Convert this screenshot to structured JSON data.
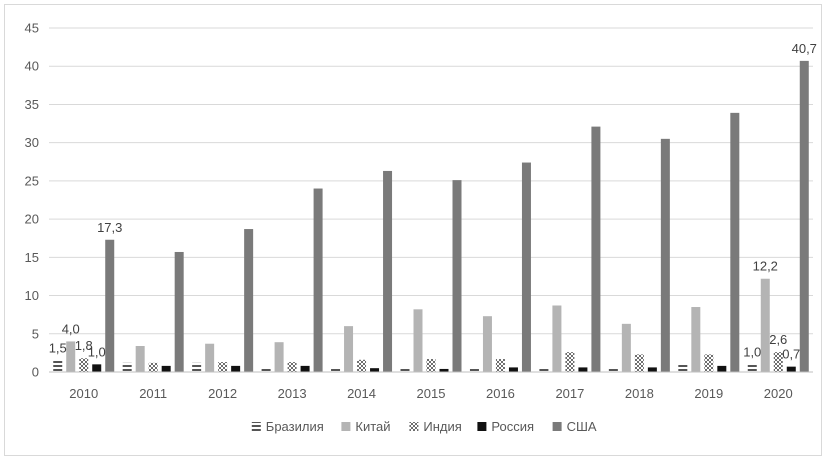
{
  "chart_data": {
    "type": "bar",
    "categories": [
      "2010",
      "2011",
      "2012",
      "2013",
      "2014",
      "2015",
      "2016",
      "2017",
      "2018",
      "2019",
      "2020"
    ],
    "ylim": [
      0,
      45
    ],
    "yticks": [
      "0",
      "5",
      "10",
      "15",
      "20",
      "25",
      "30",
      "35",
      "40",
      "45"
    ],
    "grid": "horizontal",
    "legend_position": "bottom",
    "series": [
      {
        "name": "Бразилия",
        "color": "#555555",
        "pattern": "dash",
        "values": [
          1.5,
          1.2,
          1.2,
          0.6,
          0.6,
          0.5,
          0.5,
          0.5,
          0.5,
          1.1,
          1.0
        ]
      },
      {
        "name": "Китай",
        "color": "#b4b4b4",
        "pattern": "solid",
        "values": [
          4.0,
          3.4,
          3.7,
          3.9,
          6.0,
          8.2,
          7.3,
          8.7,
          6.3,
          8.5,
          12.2
        ]
      },
      {
        "name": "Индия",
        "color": "#888888",
        "pattern": "checker",
        "values": [
          1.8,
          1.2,
          1.3,
          1.3,
          1.6,
          1.7,
          1.7,
          2.6,
          2.3,
          2.3,
          2.6
        ]
      },
      {
        "name": "Россия",
        "color": "#111111",
        "pattern": "solid",
        "values": [
          1.0,
          0.8,
          0.8,
          0.8,
          0.5,
          0.4,
          0.6,
          0.6,
          0.6,
          0.8,
          0.7
        ]
      },
      {
        "name": "США",
        "color": "#7a7a7a",
        "pattern": "solid",
        "values": [
          17.3,
          15.7,
          18.7,
          24.0,
          26.3,
          25.1,
          27.4,
          32.1,
          30.5,
          33.9,
          40.7
        ]
      }
    ],
    "data_labels": [
      {
        "series": 0,
        "category": 0,
        "text": "1,5"
      },
      {
        "series": 1,
        "category": 0,
        "text": "4,0"
      },
      {
        "series": 2,
        "category": 0,
        "text": "1,8"
      },
      {
        "series": 3,
        "category": 0,
        "text": "1,0"
      },
      {
        "series": 4,
        "category": 0,
        "text": "17,3"
      },
      {
        "series": 0,
        "category": 10,
        "text": "1,0"
      },
      {
        "series": 1,
        "category": 10,
        "text": "12,2"
      },
      {
        "series": 2,
        "category": 10,
        "text": "2,6"
      },
      {
        "series": 3,
        "category": 10,
        "text": "0,7"
      },
      {
        "series": 4,
        "category": 10,
        "text": "40,7"
      }
    ]
  }
}
